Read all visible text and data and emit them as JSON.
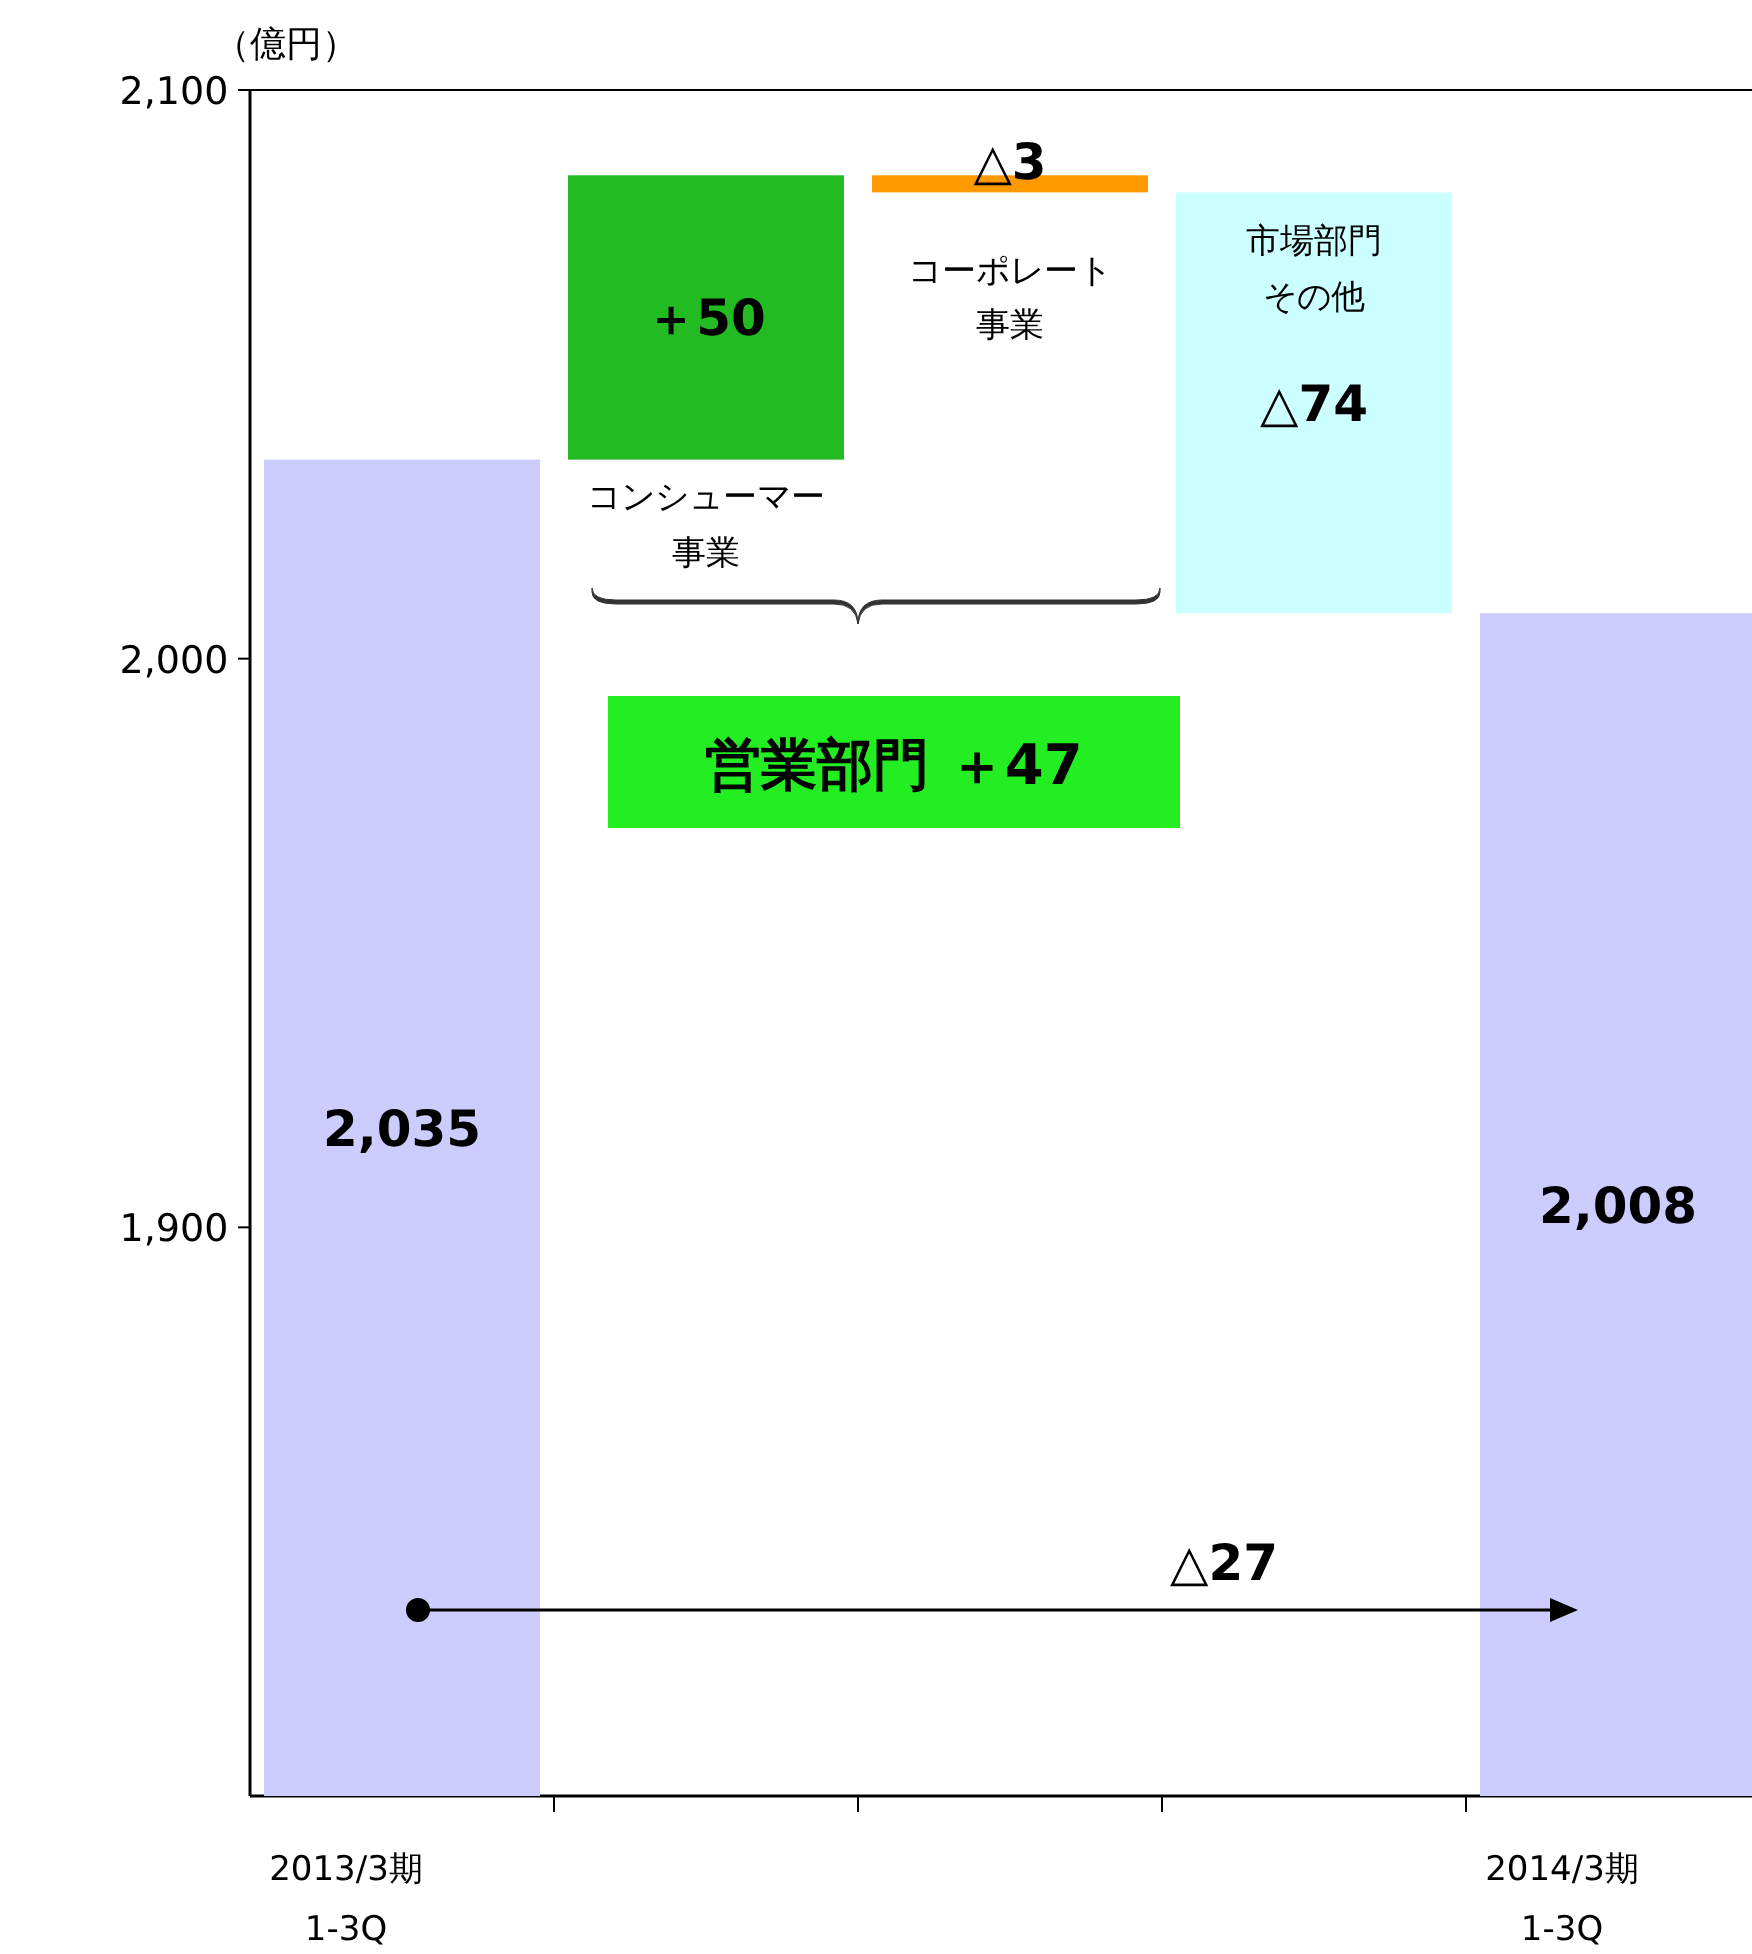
{
  "chart_data": {
    "type": "bar",
    "ylabel": "（億円）",
    "categories": [
      "2013/3期 1-3Q",
      null,
      null,
      null,
      "2014/3期 1-3Q"
    ],
    "values": [
      2035,
      50,
      -3,
      -74,
      2008
    ],
    "base": [
      null,
      2035,
      2085,
      2082,
      null
    ],
    "colors": [
      "#ccccff",
      "#22bb22",
      "#ff9900",
      "#ccffff",
      "#ccccff"
    ],
    "value_labels": [
      "2,035",
      "＋50",
      "△3",
      "△74",
      "2,008"
    ],
    "ylim": [
      1800,
      2100
    ],
    "yticks": [
      {
        "value": 1900,
        "label": "1,900"
      },
      {
        "value": 2000,
        "label": "2,000"
      },
      {
        "value": 2100,
        "label": "2,100"
      }
    ],
    "annotations": [
      "コンシューマー事業",
      "コーポレート事業",
      "市場部門その他",
      "営業部門 ＋47",
      "△27"
    ]
  }
}
